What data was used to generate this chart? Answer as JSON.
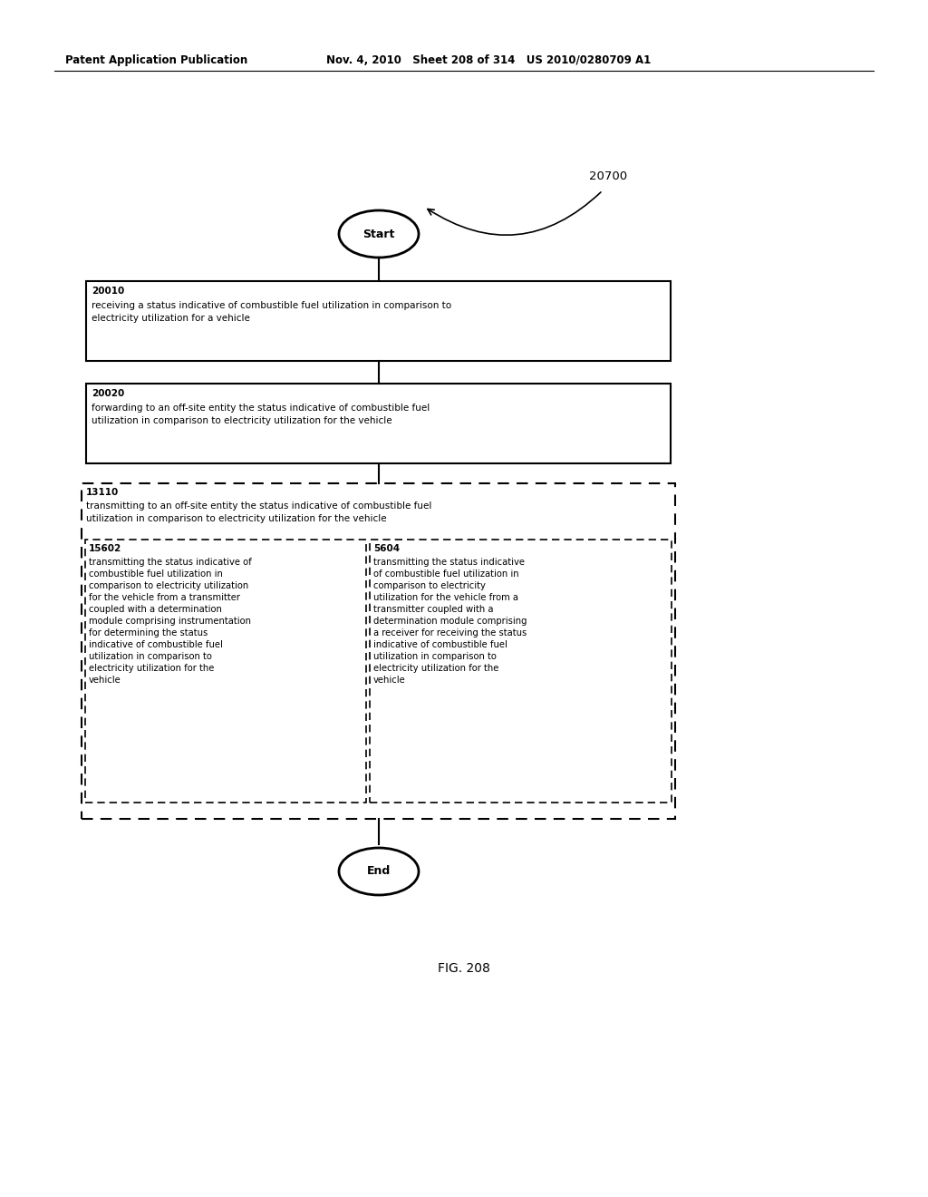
{
  "header_left": "Patent Application Publication",
  "header_right": "Nov. 4, 2010   Sheet 208 of 314   US 2010/0280709 A1",
  "fig_label": "FIG. 208",
  "diagram_label": "20700",
  "start_label": "Start",
  "end_label": "End",
  "box1_id": "20010",
  "box1_text": "receiving a status indicative of combustible fuel utilization in comparison to\nelectricity utilization for a vehicle",
  "box2_id": "20020",
  "box2_text": "forwarding to an off-site entity the status indicative of combustible fuel\nutilization in comparison to electricity utilization for the vehicle",
  "outer_dashed_id": "13110",
  "outer_dashed_text": "transmitting to an off-site entity the status indicative of combustible fuel\nutilization in comparison to electricity utilization for the vehicle",
  "inner_left_id": "15602",
  "inner_left_text": "transmitting the status indicative of\ncombustible fuel utilization in\ncomparison to electricity utilization\nfor the vehicle from a transmitter\ncoupled with a determination\nmodule comprising instrumentation\nfor determining the status\nindicative of combustible fuel\nutilization in comparison to\nelectricity utilization for the\nvehicle",
  "inner_right_id": "5604",
  "inner_right_text": "transmitting the status indicative\nof combustible fuel utilization in\ncomparison to electricity\nutilization for the vehicle from a\ntransmitter coupled with a\ndetermination module comprising\na receiver for receiving the status\nindicative of combustible fuel\nutilization in comparison to\nelectricity utilization for the\nvehicle",
  "bg_color": "#ffffff",
  "text_color": "#000000",
  "font_size_header": 8.5,
  "font_size_id": 7.5,
  "font_size_body": 7.5,
  "font_size_terminal": 9,
  "font_size_fig": 10
}
